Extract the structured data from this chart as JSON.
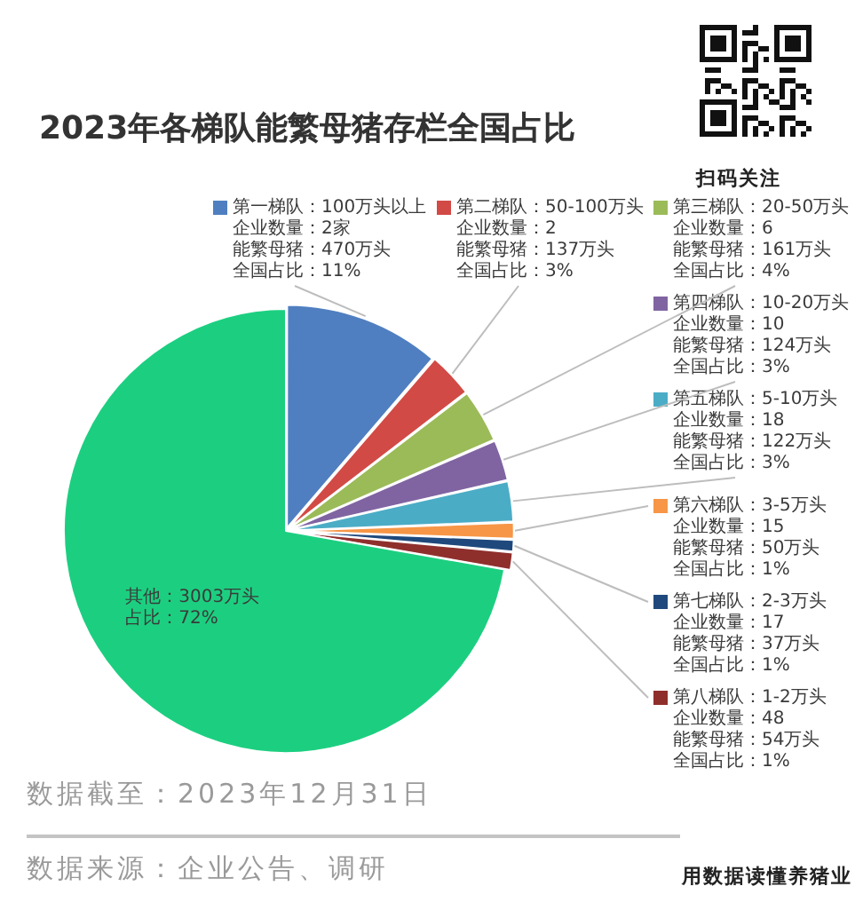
{
  "chart_data": {
    "type": "pie",
    "title": "2023年各梯队能繁母猪存栏全国占比",
    "categories": [
      "第一梯队：100万头以上",
      "第二梯队：50-100万头",
      "第三梯队：20-50万头",
      "第四梯队：10-20万头",
      "第五梯队：5-10万头",
      "第六梯队：3-5万头",
      "第七梯队：2-3万头",
      "第八梯队：1-2万头",
      "其他：3003万头"
    ],
    "values": [
      470,
      137,
      161,
      124,
      122,
      50,
      37,
      54,
      3003
    ],
    "colors": [
      "#4f7fc0",
      "#d24a45",
      "#9bbb59",
      "#8064a2",
      "#4bacc6",
      "#f79646",
      "#1f497d",
      "#8f2f2c",
      "#1ccf80"
    ],
    "legend": "right",
    "annotations": [
      "扫码关注",
      "数据截至：2023年12月31日",
      "数据来源：企业公告、调研",
      "用数据读懂养猪业",
      "企业数量：2家",
      "能繁母猪：470万头",
      "全国占比：11%",
      "企业数量：2",
      "能繁母猪：137万头",
      "全国占比：3%",
      "企业数量：6",
      "能繁母猪：161万头",
      "全国占比：4%",
      "企业数量：10",
      "能繁母猪：124万头",
      "全国占比：3%",
      "企业数量：18",
      "能繁母猪：122万头",
      "全国占比：3%",
      "企业数量：15",
      "能繁母猪：50万头",
      "全国占比：1%",
      "企业数量：17",
      "能繁母猪：37万头",
      "全国占比：1%",
      "企业数量：48",
      "能繁母猪：54万头",
      "全国占比：1%",
      "占比：72%"
    ]
  }
}
